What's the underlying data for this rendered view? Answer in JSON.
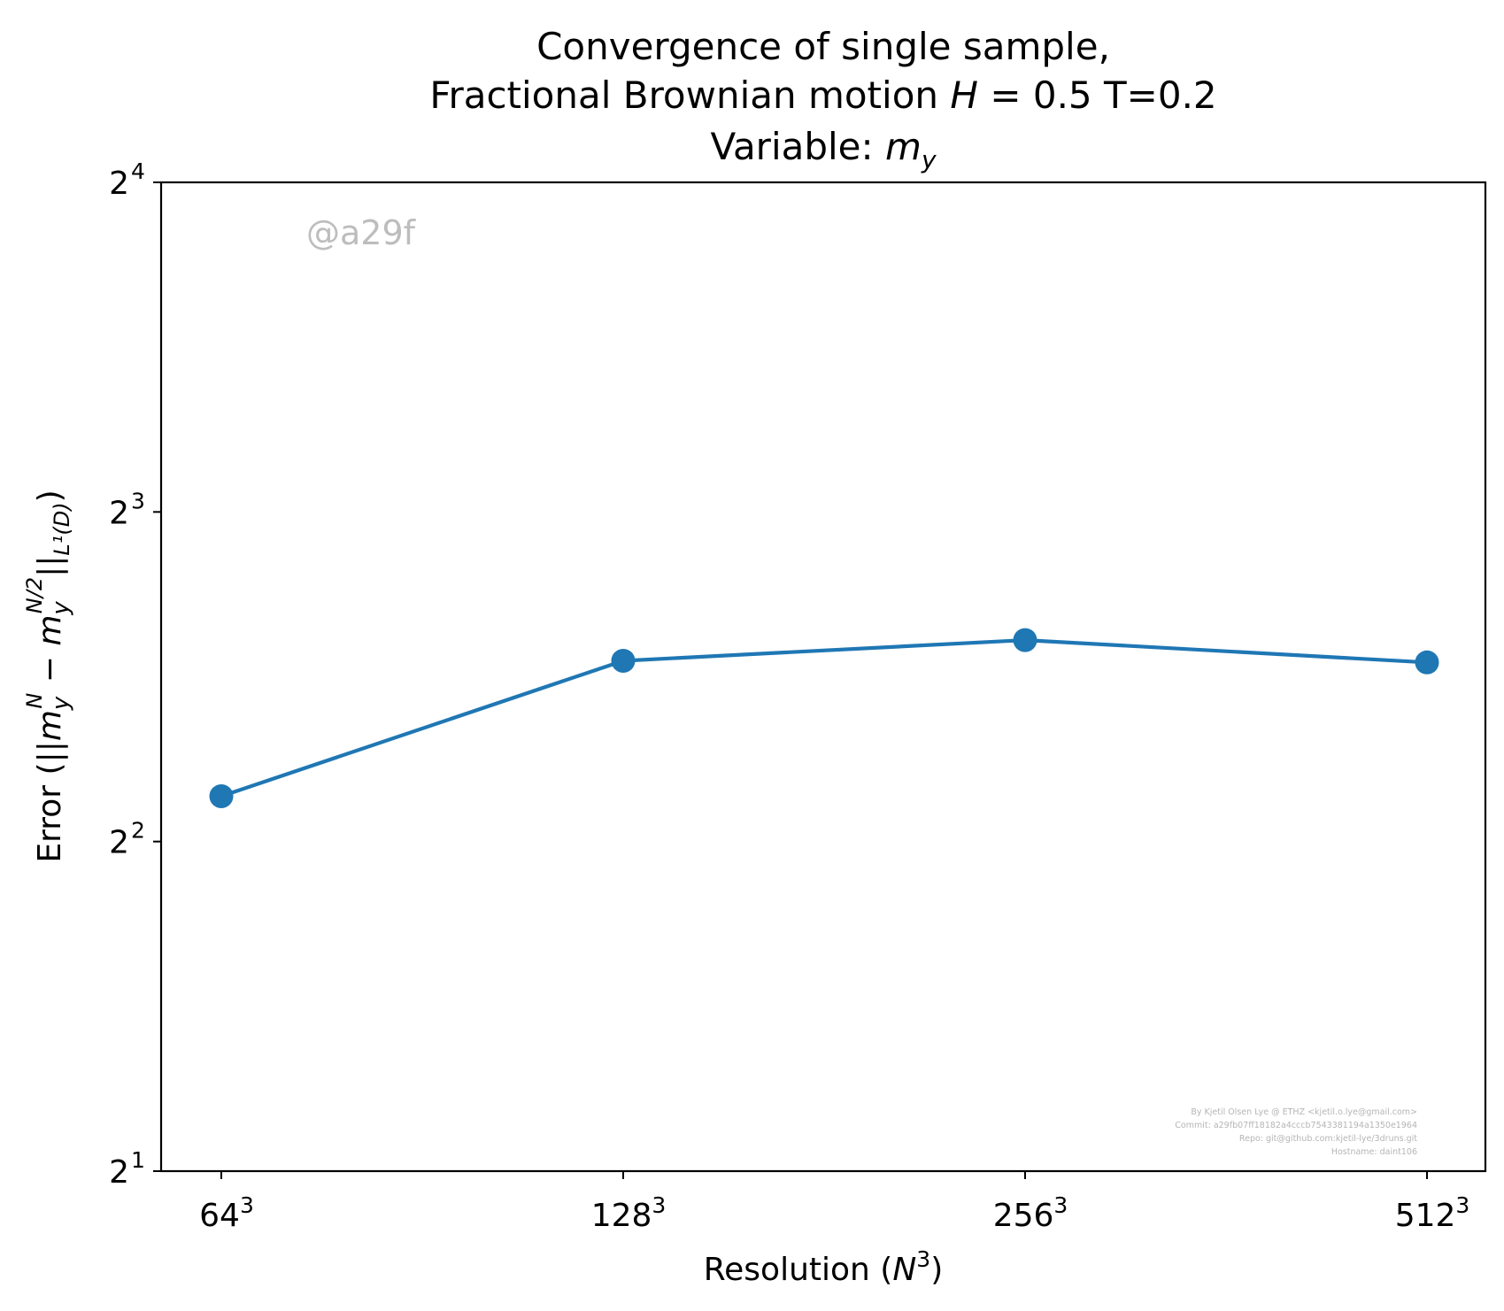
{
  "chart_data": {
    "type": "line",
    "title": {
      "line1": "Convergence of single sample,",
      "line2_pre": "Fractional Brownian motion ",
      "line2_H": "H",
      "line2_eq": " = 0.5 T=0.2",
      "line3_pre": "Variable: ",
      "line3_m": "m",
      "line3_sub": "y"
    },
    "xlabel": {
      "pre": "Resolution (",
      "N": "N",
      "exp": "3",
      "post": ")"
    },
    "ylabel": {
      "pre": "Error (||",
      "m": "m",
      "sub": "y",
      "sup1": "N",
      "minus": " − ",
      "sup2": "N/2",
      "bars": "||",
      "norm": "L¹(D)",
      "post": ")"
    },
    "x_ticks": [
      {
        "base": "64",
        "exp": "3"
      },
      {
        "base": "128",
        "exp": "3"
      },
      {
        "base": "256",
        "exp": "3"
      },
      {
        "base": "512",
        "exp": "3"
      }
    ],
    "y_scale": "log2",
    "y_ticks": [
      {
        "base": "2",
        "exp": "1",
        "value": 2
      },
      {
        "base": "2",
        "exp": "2",
        "value": 4
      },
      {
        "base": "2",
        "exp": "3",
        "value": 8
      },
      {
        "base": "2",
        "exp": "4",
        "value": 16
      }
    ],
    "ylim": [
      2,
      16
    ],
    "series": [
      {
        "values": [
          4.4,
          5.85,
          6.11,
          5.83
        ],
        "color": "#1f77b4"
      }
    ],
    "grid": false,
    "watermark": "@a29f",
    "credits": [
      "By Kjetil Olsen Lye @ ETHZ <kjetil.o.lye@gmail.com>",
      "Commit: a29fb07ff18182a4cccb7543381194a1350e1964",
      "Repo: git@github.com:kjetil-lye/3druns.git",
      "Hostname: daint106"
    ]
  }
}
